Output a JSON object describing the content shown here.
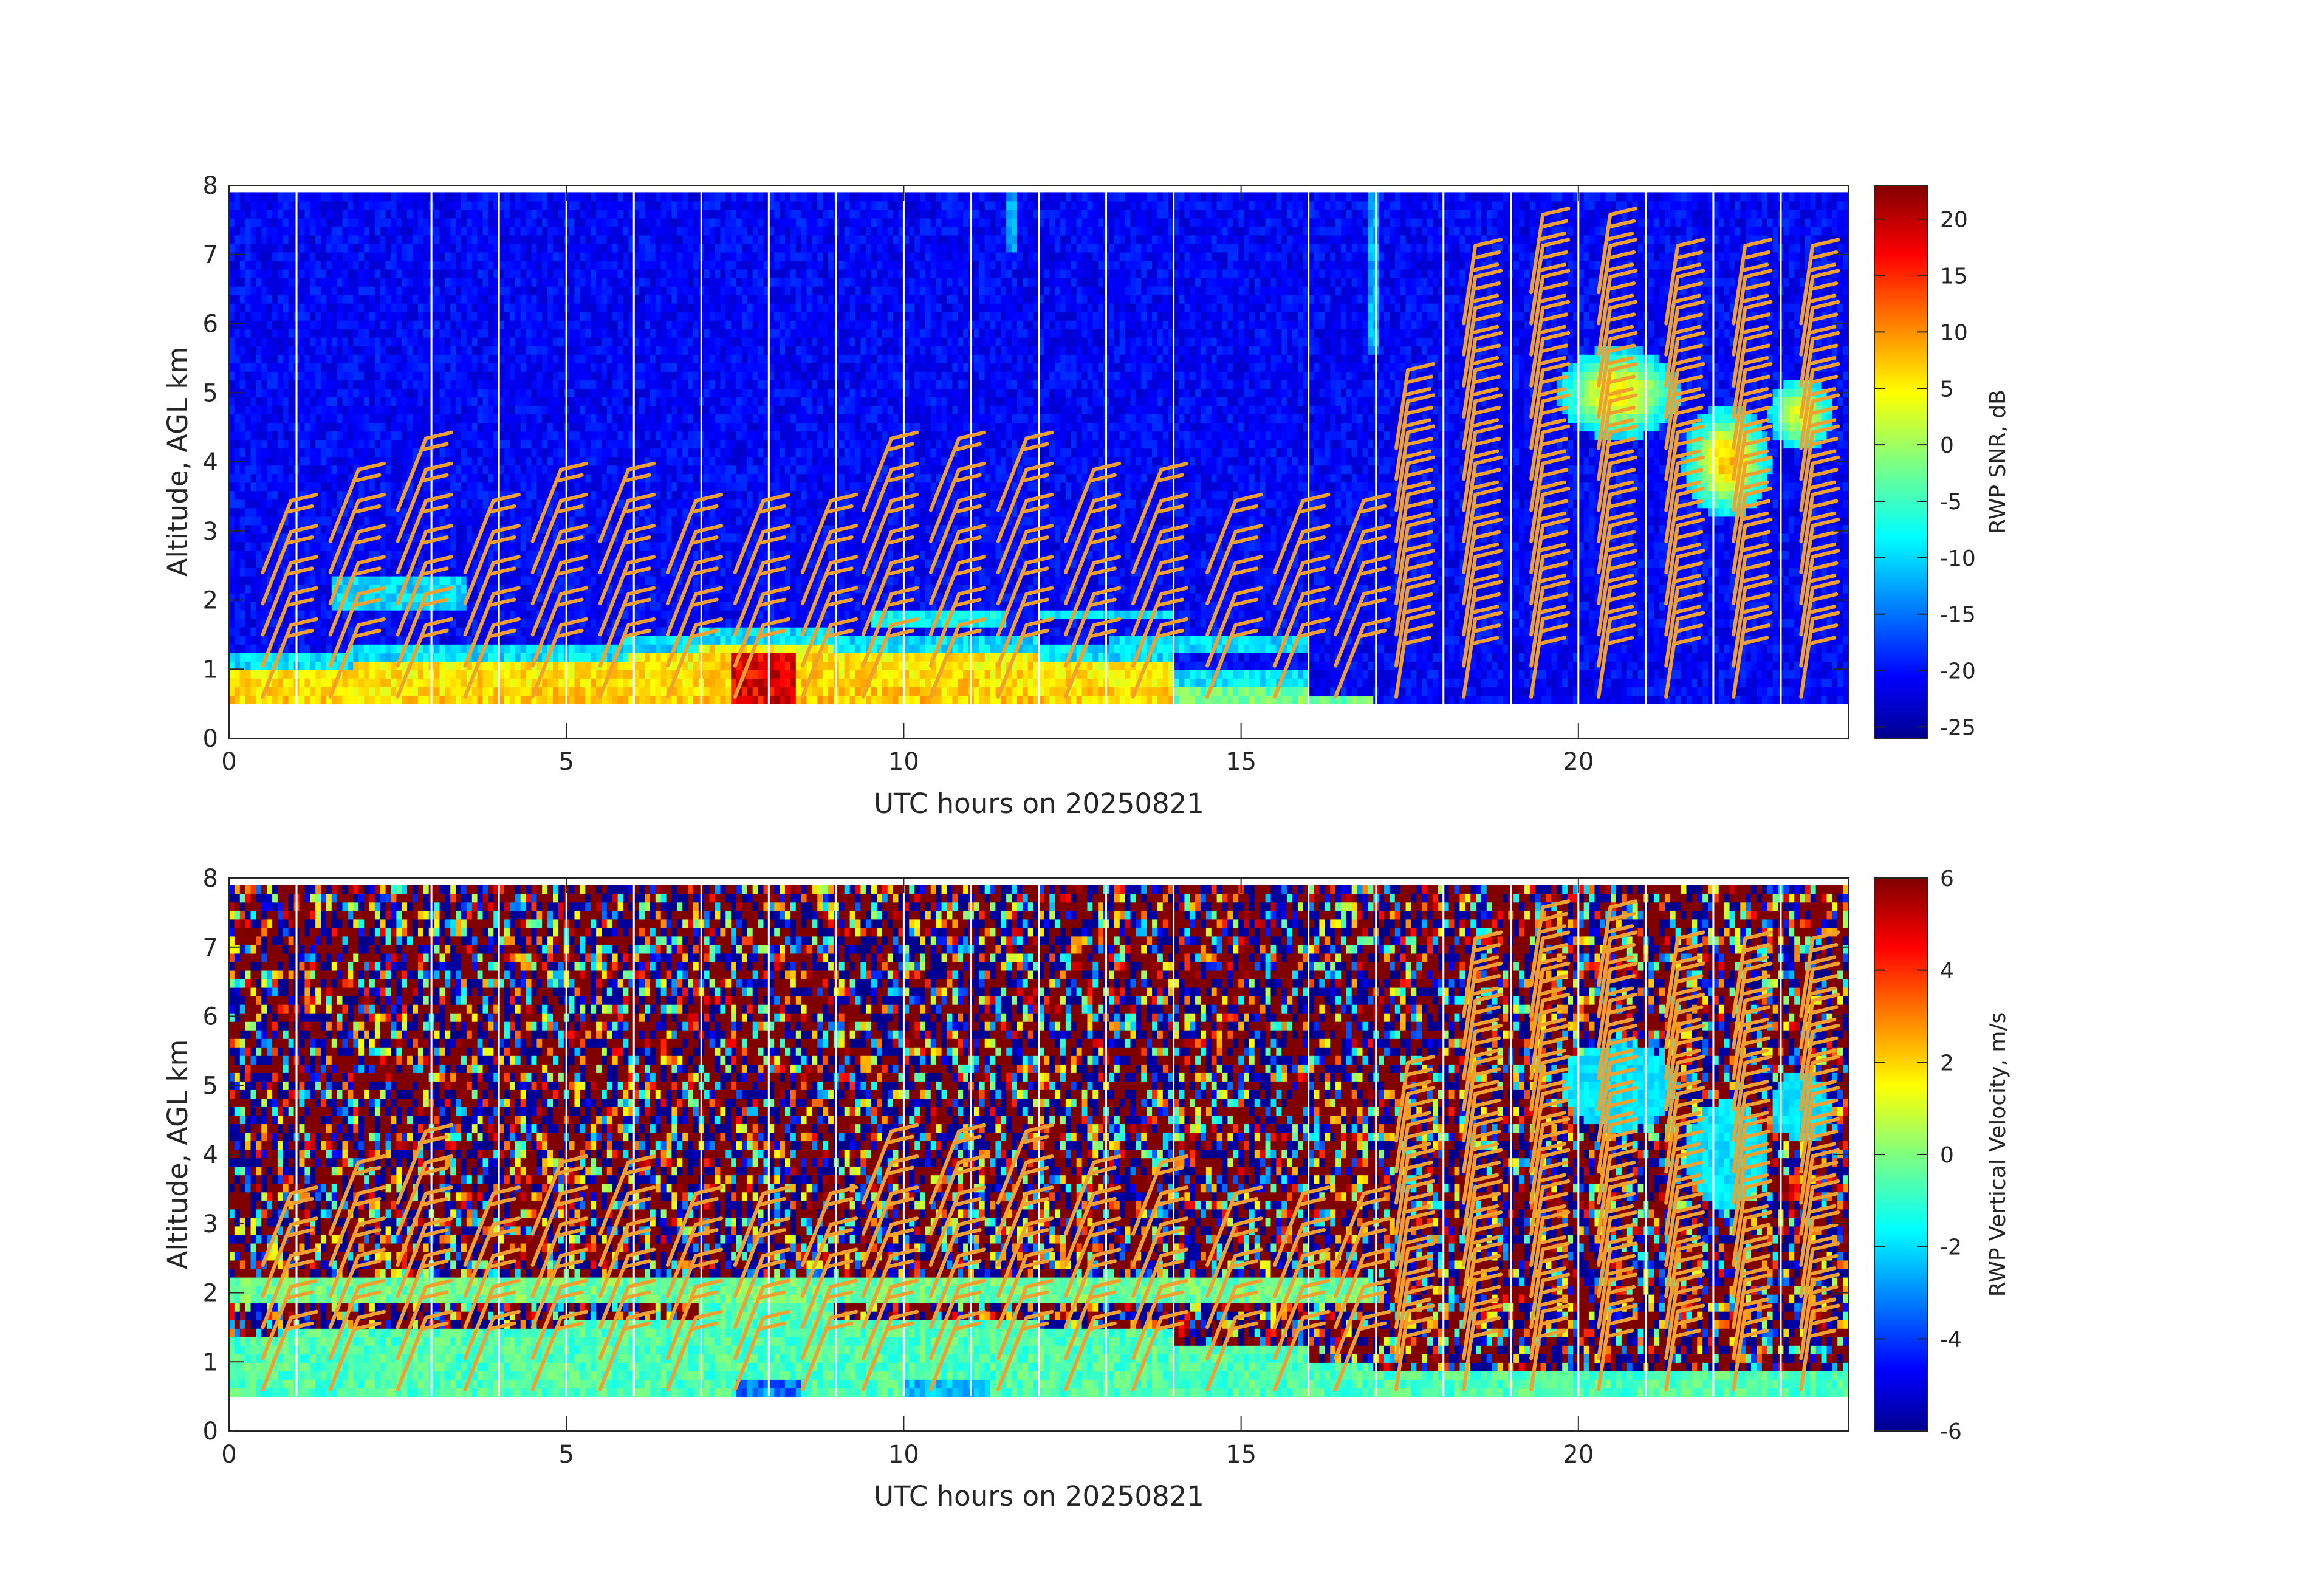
{
  "chart_data": [
    {
      "type": "heatmap",
      "variable": "SNR",
      "xlabel": "UTC hours on 20250821",
      "ylabel": "Altitude, AGL km",
      "xlim": [
        0,
        24
      ],
      "ylim": [
        0,
        8
      ],
      "xticks": [
        0,
        5,
        10,
        15,
        20
      ],
      "yticks": [
        0,
        1,
        2,
        3,
        4,
        5,
        6,
        7,
        8
      ],
      "grid": false,
      "data_altitude_range_km": [
        0.5,
        7.9
      ],
      "colorbar": {
        "label": "RWP SNR, dB",
        "range": [
          -26,
          23
        ],
        "ticks": [
          20,
          15,
          10,
          5,
          0,
          -5,
          -10,
          -15,
          -20,
          -25
        ],
        "colormap": "jet"
      },
      "overlay": "wind barbs (orange)",
      "barb_color": "#f0a030",
      "gap_times_h": [
        1,
        3,
        4,
        5,
        6,
        7,
        8,
        9,
        10,
        11,
        12,
        13,
        14,
        16,
        17,
        18,
        19,
        20,
        21,
        22,
        23
      ]
    },
    {
      "type": "heatmap",
      "variable": "vertical velocity",
      "xlabel": "UTC hours on 20250821",
      "ylabel": "Altitude, AGL km",
      "xlim": [
        0,
        24
      ],
      "ylim": [
        0,
        8
      ],
      "xticks": [
        0,
        5,
        10,
        15,
        20
      ],
      "yticks": [
        0,
        1,
        2,
        3,
        4,
        5,
        6,
        7,
        8
      ],
      "grid": false,
      "data_altitude_range_km": [
        0.5,
        7.9
      ],
      "colorbar": {
        "label": "RWP Vertical Velocity, m/s",
        "range": [
          -6,
          6
        ],
        "ticks": [
          6,
          4,
          2,
          0,
          -2,
          -4,
          -6
        ],
        "colormap": "jet"
      },
      "overlay": "wind barbs (orange)",
      "barb_color": "#f0a030",
      "gap_times_h": [
        1,
        3,
        4,
        5,
        6,
        7,
        8,
        9,
        10,
        11,
        12,
        13,
        14,
        16,
        17,
        18,
        19,
        20,
        21,
        22,
        23
      ]
    }
  ],
  "wind_barbs": {
    "profiles": [
      {
        "t": 0.5,
        "tops": 2.5
      },
      {
        "t": 1.5,
        "tops": 3.2
      },
      {
        "t": 2.5,
        "tops": 3.3
      },
      {
        "t": 3.5,
        "tops": 2.4
      },
      {
        "t": 4.5,
        "tops": 3.2
      },
      {
        "t": 5.5,
        "tops": 3.2
      },
      {
        "t": 6.5,
        "tops": 2.4
      },
      {
        "t": 7.5,
        "tops": 2.4
      },
      {
        "t": 8.5,
        "tops": 2.6
      },
      {
        "t": 9.4,
        "tops": 3.3
      },
      {
        "t": 10.4,
        "tops": 3.3
      },
      {
        "t": 11.4,
        "tops": 3.3
      },
      {
        "t": 12.4,
        "tops": 3.2
      },
      {
        "t": 13.4,
        "tops": 3.2
      },
      {
        "t": 14.5,
        "tops": 2.4
      },
      {
        "t": 15.5,
        "tops": 2.4
      },
      {
        "t": 16.4,
        "tops": 2.4
      },
      {
        "t": 17.3,
        "tops": 4.6
      },
      {
        "t": 18.3,
        "tops": 6.2
      },
      {
        "t": 19.3,
        "tops": 6.6
      },
      {
        "t": 20.3,
        "tops": 6.6
      },
      {
        "t": 21.3,
        "tops": 6.2
      },
      {
        "t": 22.3,
        "tops": 6.2
      },
      {
        "t": 23.3,
        "tops": 6.2
      }
    ]
  }
}
